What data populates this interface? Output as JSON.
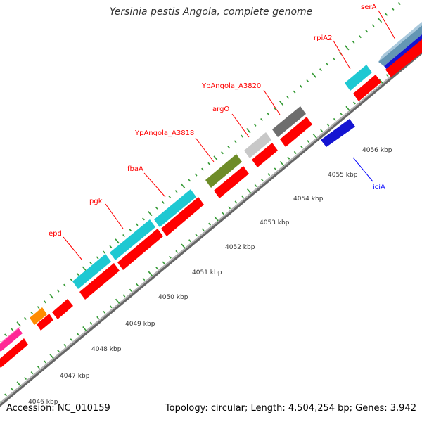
{
  "title": "Yersinia pestis Angola, complete genome",
  "footer": {
    "accession": "Accession: NC_010159",
    "summary": "Topology: circular; Length: 4,504,254 bp; Genes: 3,942"
  },
  "colors": {
    "label": "#ff0000",
    "label_blue": "#0000ff",
    "backbone": "#8c8c8c",
    "tick": "#339933",
    "cyan": "#1ec8d2",
    "red": "#ff0000",
    "olive": "#6e8c28",
    "gray_dark": "#6e6e6e",
    "gray_light": "#c8c8c8",
    "blue": "#1414d2",
    "steel": "#6496b4",
    "orange": "#ff8c00",
    "magenta": "#ff2896"
  },
  "gene_labels": [
    {
      "name": "serA",
      "color": "label"
    },
    {
      "name": "rpiA2",
      "color": "label"
    },
    {
      "name": "YpAngola_A3820",
      "color": "label"
    },
    {
      "name": "argO",
      "color": "label"
    },
    {
      "name": "YpAngola_A3818",
      "color": "label"
    },
    {
      "name": "fbaA",
      "color": "label"
    },
    {
      "name": "pgk",
      "color": "label"
    },
    {
      "name": "epd",
      "color": "label"
    },
    {
      "name": "iciA",
      "color": "label_blue"
    }
  ],
  "kbp_ticks": [
    "4046 kbp",
    "4047 kbp",
    "4048 kbp",
    "4049 kbp",
    "4050 kbp",
    "4051 kbp",
    "4052 kbp",
    "4053 kbp",
    "4054 kbp",
    "4055 kbp",
    "4056 kbp"
  ]
}
